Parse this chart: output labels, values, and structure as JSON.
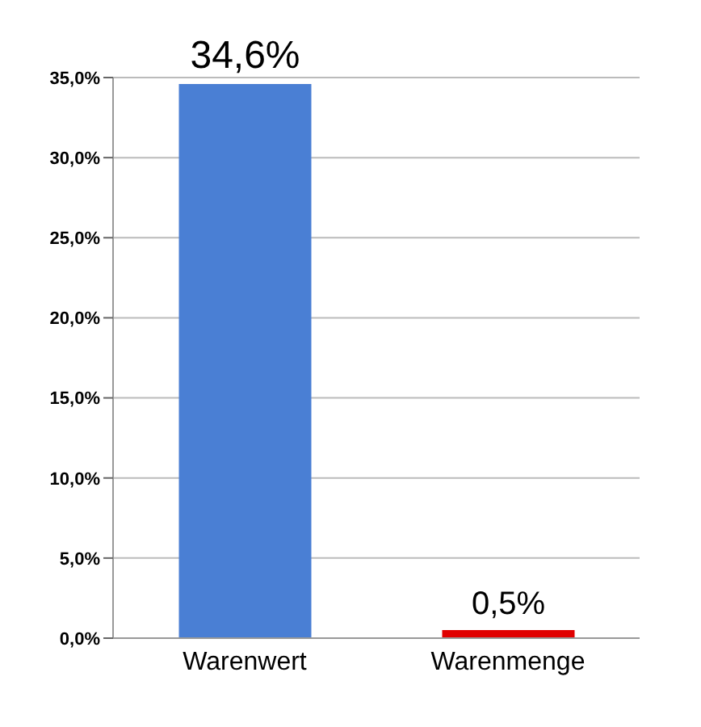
{
  "chart_data": {
    "type": "bar",
    "categories": [
      "Warenwert",
      "Warenmenge"
    ],
    "values": [
      34.6,
      0.5
    ],
    "colors": [
      "#4a7fd4",
      "#e00000"
    ],
    "value_labels": [
      "34,6%",
      "0,5%"
    ],
    "ylim": [
      0,
      35
    ],
    "yticks": [
      {
        "value": 0,
        "label": "0,0%"
      },
      {
        "value": 5,
        "label": "5,0%"
      },
      {
        "value": 10,
        "label": "10,0%"
      },
      {
        "value": 15,
        "label": "15,0%"
      },
      {
        "value": 20,
        "label": "20,0%"
      },
      {
        "value": 25,
        "label": "25,0%"
      },
      {
        "value": 30,
        "label": "30,0%"
      },
      {
        "value": 35,
        "label": "35,0%"
      }
    ],
    "grid": "y"
  }
}
